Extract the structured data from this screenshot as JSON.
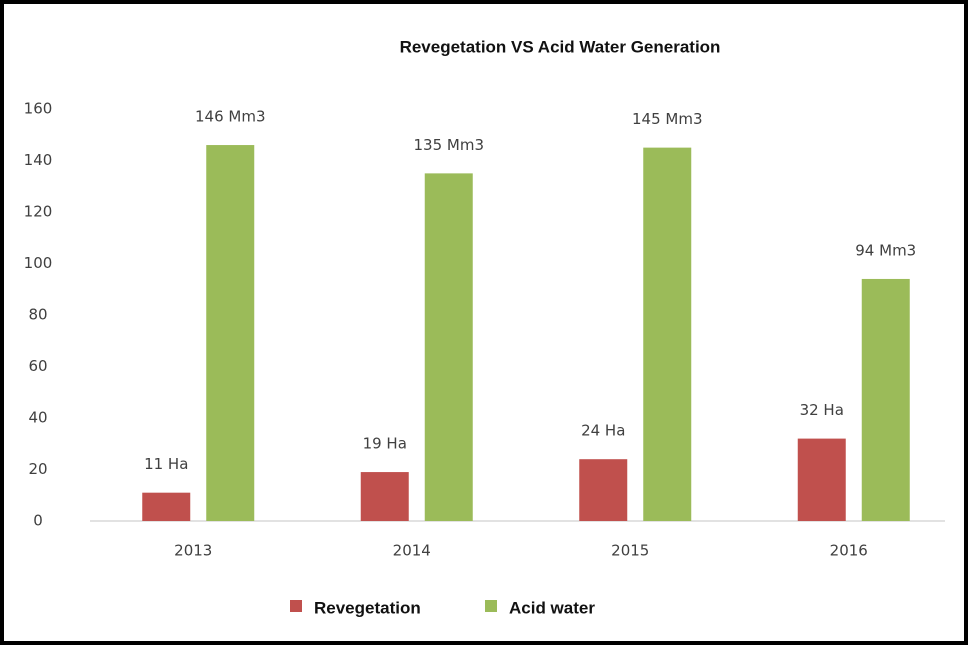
{
  "chart_data": {
    "type": "bar",
    "title": "Revegetation VS Acid Water Generation",
    "categories": [
      "2013",
      "2014",
      "2015",
      "2016"
    ],
    "series": [
      {
        "name": "Revegetation",
        "color": "#c0504d",
        "values": [
          11,
          19,
          24,
          32
        ],
        "value_labels": [
          "11 Ha",
          "19 Ha",
          "24 Ha",
          "32 Ha"
        ]
      },
      {
        "name": "Acid water",
        "color": "#9bbb59",
        "values": [
          146,
          135,
          145,
          94
        ],
        "value_labels": [
          "146 Mm3",
          "135 Mm3",
          "145 Mm3",
          "94 Mm3"
        ]
      }
    ],
    "ylim": [
      0,
      160
    ],
    "yticks": [
      0,
      20,
      40,
      60,
      80,
      100,
      120,
      140,
      160
    ],
    "grid": false,
    "legend": "bottom"
  }
}
